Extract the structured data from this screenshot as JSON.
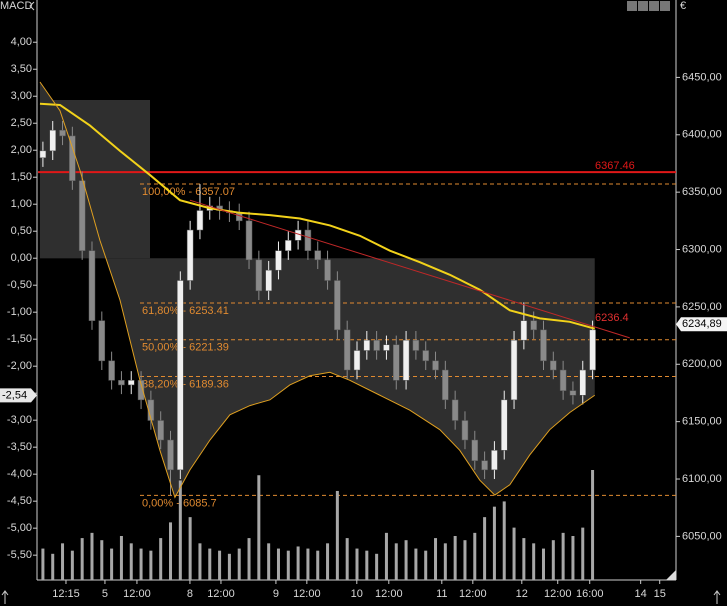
{
  "chart_data": {
    "type": "candlestick",
    "indicator": "MACD",
    "currency": "€",
    "up_color": "#f0f0f0",
    "down_color": "#8a8a8a",
    "volume_color": "#a8a8a8",
    "xlim": [
      -0.5,
      64.5
    ],
    "xticks": [
      {
        "value": 2.35,
        "label": "12:15"
      },
      {
        "value": 6.32,
        "label": "5"
      },
      {
        "value": 9.58,
        "label": "12:00"
      },
      {
        "value": 14.98,
        "label": "8"
      },
      {
        "value": 18.14,
        "label": "12:00"
      },
      {
        "value": 23.74,
        "label": "9"
      },
      {
        "value": 26.89,
        "label": "12:00"
      },
      {
        "value": 31.98,
        "label": "10"
      },
      {
        "value": 35.24,
        "label": "12:00"
      },
      {
        "value": 40.64,
        "label": "11"
      },
      {
        "value": 43.8,
        "label": "12:00"
      },
      {
        "value": 48.79,
        "label": "12"
      },
      {
        "value": 52.45,
        "label": "12:00"
      },
      {
        "value": 55.71,
        "label": "16:00"
      },
      {
        "value": 60.9,
        "label": "14"
      },
      {
        "value": 62.84,
        "label": "15"
      }
    ],
    "ylim": [
      6012,
      6507
    ],
    "yticks": [
      {
        "value": 6450,
        "label": "6450,00"
      },
      {
        "value": 6400,
        "label": "6400,00"
      },
      {
        "value": 6350,
        "label": "6350,00"
      },
      {
        "value": 6300,
        "label": "6300,00"
      },
      {
        "value": 6250,
        "label": "6250,00"
      },
      {
        "value": 6200,
        "label": "6200,00"
      },
      {
        "value": 6150,
        "label": "6150,00"
      },
      {
        "value": 6100,
        "label": "6100,00"
      },
      {
        "value": 6050,
        "label": "6050,00"
      }
    ],
    "y2lim": [
      -5.96,
      4.56
    ],
    "y2ticks": [
      {
        "value": 4,
        "label": "4,00"
      },
      {
        "value": 3.5,
        "label": "3,50"
      },
      {
        "value": 3,
        "label": "3,00"
      },
      {
        "value": 2.5,
        "label": "2,50"
      },
      {
        "value": 2,
        "label": "2,00"
      },
      {
        "value": 1.5,
        "label": "1,50"
      },
      {
        "value": 1,
        "label": "1,00"
      },
      {
        "value": 0.5,
        "label": "0,50"
      },
      {
        "value": 0,
        "label": "0,00"
      },
      {
        "value": -0.5,
        "label": "-0,50"
      },
      {
        "value": -1,
        "label": "-1,00"
      },
      {
        "value": -1.5,
        "label": "-1,50"
      },
      {
        "value": -2,
        "label": "-2,00"
      },
      {
        "value": -2.5,
        "label": "-2,50"
      },
      {
        "value": -3,
        "label": "-3,00"
      },
      {
        "value": -3.5,
        "label": "-3,50"
      },
      {
        "value": -4,
        "label": "-4,00"
      },
      {
        "value": -4.5,
        "label": "-4,50"
      },
      {
        "value": -5,
        "label": "-5,00"
      },
      {
        "value": -5.5,
        "label": "-5,50"
      }
    ],
    "x": [
      0,
      1,
      2,
      3,
      4,
      5,
      6,
      7,
      8,
      9,
      10,
      11,
      12,
      13,
      14,
      15,
      16,
      17,
      18,
      19,
      20,
      21,
      22,
      23,
      24,
      25,
      26,
      27,
      28,
      29,
      30,
      31,
      32,
      33,
      34,
      35,
      36,
      37,
      38,
      39,
      40,
      41,
      42,
      43,
      44,
      45,
      46,
      47,
      48,
      49,
      50,
      51,
      52,
      53,
      54,
      55,
      56
    ],
    "open": [
      6380,
      6386,
      6404,
      6399,
      6360,
      6299,
      6238,
      6203,
      6186,
      6182,
      6186,
      6169,
      6151,
      6134,
      6108,
      6273,
      6317,
      6334,
      6338,
      6334,
      6332,
      6325,
      6291,
      6264,
      6282,
      6299,
      6308,
      6317,
      6299,
      6291,
      6273,
      6230,
      6195,
      6212,
      6221,
      6212,
      6217,
      6186,
      6221,
      6212,
      6203,
      6195,
      6169,
      6151,
      6134,
      6116,
      6108,
      6125,
      6169,
      6221,
      6238,
      6230,
      6203,
      6195,
      6177,
      6173,
      6195
    ],
    "high": [
      6394,
      6412,
      6412,
      6407,
      6368,
      6307,
      6246,
      6211,
      6194,
      6194,
      6194,
      6177,
      6159,
      6142,
      6281,
      6325,
      6357,
      6346,
      6346,
      6342,
      6340,
      6333,
      6299,
      6290,
      6307,
      6316,
      6325,
      6325,
      6307,
      6299,
      6281,
      6238,
      6220,
      6229,
      6229,
      6225,
      6225,
      6229,
      6229,
      6220,
      6211,
      6203,
      6177,
      6159,
      6142,
      6124,
      6133,
      6177,
      6229,
      6254,
      6246,
      6238,
      6211,
      6203,
      6185,
      6203,
      6238
    ],
    "low": [
      6372,
      6378,
      6391,
      6352,
      6291,
      6230,
      6195,
      6178,
      6174,
      6174,
      6161,
      6143,
      6126,
      6086,
      6100,
      6265,
      6309,
      6326,
      6326,
      6324,
      6317,
      6283,
      6256,
      6256,
      6274,
      6291,
      6300,
      6291,
      6283,
      6265,
      6222,
      6187,
      6187,
      6204,
      6204,
      6204,
      6178,
      6178,
      6204,
      6195,
      6187,
      6161,
      6143,
      6126,
      6108,
      6100,
      6100,
      6117,
      6161,
      6213,
      6222,
      6195,
      6187,
      6169,
      6165,
      6165,
      6187
    ],
    "close": [
      6386,
      6404,
      6399,
      6360,
      6299,
      6238,
      6203,
      6186,
      6182,
      6186,
      6169,
      6151,
      6134,
      6108,
      6273,
      6317,
      6334,
      6338,
      6334,
      6332,
      6325,
      6291,
      6264,
      6282,
      6299,
      6308,
      6317,
      6299,
      6291,
      6273,
      6230,
      6195,
      6212,
      6221,
      6212,
      6217,
      6186,
      6221,
      6212,
      6203,
      6195,
      6169,
      6151,
      6134,
      6116,
      6108,
      6125,
      6169,
      6221,
      6238,
      6230,
      6203,
      6195,
      6177,
      6173,
      6195,
      6230
    ],
    "volume": [
      30,
      25,
      35,
      28,
      40,
      45,
      38,
      30,
      42,
      35,
      30,
      28,
      40,
      55,
      95,
      60,
      35,
      30,
      28,
      25,
      30,
      40,
      100,
      35,
      30,
      28,
      32,
      30,
      28,
      35,
      85,
      40,
      30,
      28,
      25,
      45,
      35,
      38,
      30,
      28,
      40,
      35,
      42,
      38,
      45,
      60,
      70,
      75,
      50,
      40,
      35,
      30,
      38,
      45,
      42,
      50,
      105
    ],
    "overlays": [
      {
        "color": "#f2d21a",
        "width": 2,
        "x": [
          -0.3,
          1.74,
          4.8,
          7.85,
          10.9,
          13.96,
          17.02,
          20.07,
          23.13,
          26.18,
          29.24,
          32.29,
          35.35,
          38.4,
          41.46,
          44.51,
          47.57,
          50.62,
          53.68,
          56.22
        ],
        "values": [
          6427,
          6426,
          6408,
          6386,
          6365,
          6343,
          6336,
          6332,
          6330,
          6327,
          6321,
          6312,
          6299,
          6289,
          6278,
          6265,
          6247,
          6240,
          6237,
          6231
        ]
      },
      {
        "color": "#e0a020",
        "width": 1,
        "x": [
          -0.3,
          1.74,
          3.78,
          5.81,
          7.85,
          9.89,
          11.92,
          13.45,
          14.98,
          17.02,
          19.05,
          21.09,
          23.13,
          25.16,
          27.2,
          29.24,
          31.27,
          34.33,
          37.38,
          40.44,
          42.47,
          44.51,
          46.04,
          47.57,
          49.6,
          51.64,
          53.68,
          56.22
        ],
        "values": [
          6446,
          6421,
          6369,
          6308,
          6256,
          6186,
          6125,
          6084,
          6108,
          6134,
          6156,
          6164,
          6169,
          6182,
          6190,
          6193,
          6186,
          6173,
          6160,
          6143,
          6125,
          6099,
          6086,
          6095,
          6121,
          6143,
          6158,
          6173
        ]
      }
    ],
    "hlines": [
      {
        "value": 6367.46,
        "label": "6367.46",
        "color": "#e01818"
      }
    ],
    "fib_levels": [
      {
        "value": 6357.07,
        "label": "100,00% - 6357.07"
      },
      {
        "value": 6253.41,
        "label": "61,80% - 6253.41"
      },
      {
        "value": 6221.39,
        "label": "50,00% - 6221.39"
      },
      {
        "value": 6189.36,
        "label": "38,20% - 6189.36"
      },
      {
        "value": 6085.7,
        "label": "0,00% - 6085.7"
      }
    ],
    "fib_color": "#e08a30",
    "trendline": {
      "color": "#c02828",
      "x": [
        14.98,
        59.79
      ],
      "values": [
        6343,
        6223
      ],
      "label": "6236.4"
    },
    "last_price": {
      "value": 6234.89,
      "label": "6234,89"
    },
    "macd_marker": {
      "value": -2.54,
      "label": "-2,54"
    }
  }
}
